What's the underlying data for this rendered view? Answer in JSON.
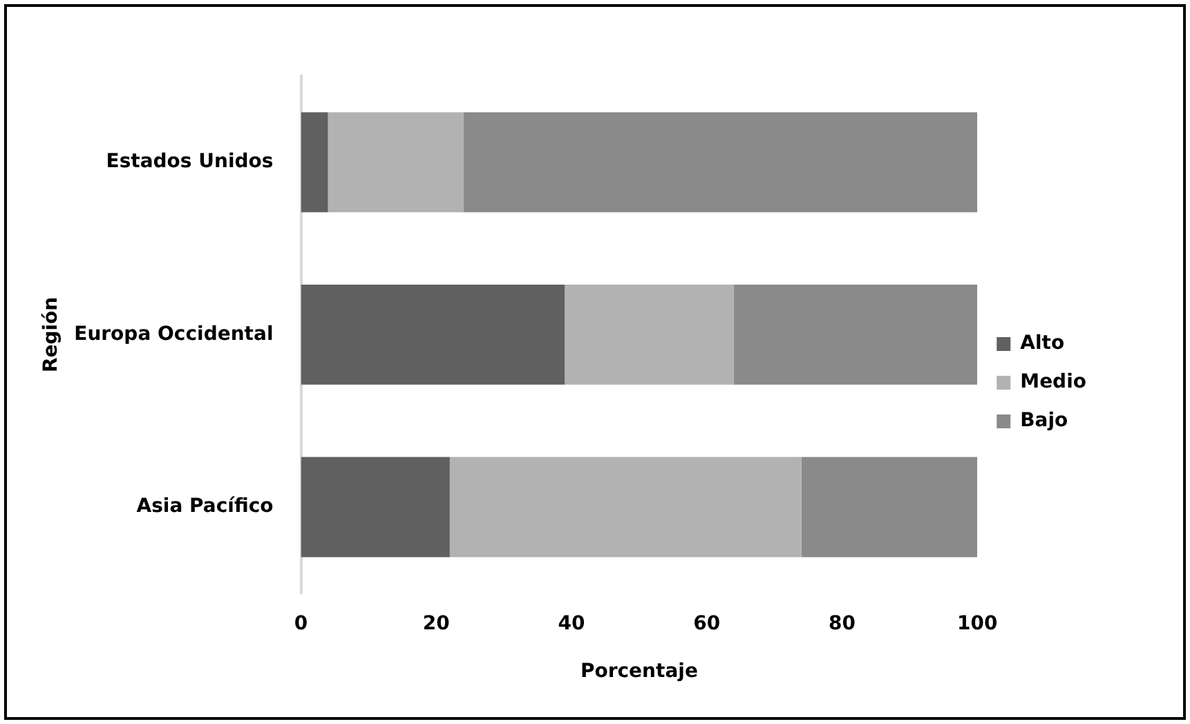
{
  "chart_data": {
    "type": "bar",
    "orientation": "horizontal",
    "stacked": true,
    "xlabel": "Porcentaje",
    "ylabel": "Región",
    "categories": [
      "Estados Unidos",
      "Europa Occidental",
      "Asia Pacífico"
    ],
    "series": [
      {
        "name": "Alto",
        "color": "#606060",
        "values": [
          4,
          39,
          22
        ]
      },
      {
        "name": "Medio",
        "color": "#b2b2b2",
        "values": [
          20,
          25,
          52
        ]
      },
      {
        "name": "Bajo",
        "color": "#8a8a8a",
        "values": [
          76,
          36,
          26
        ]
      }
    ],
    "xlim": [
      0,
      100
    ],
    "xticks": [
      0,
      20,
      40,
      60,
      80,
      100
    ],
    "legend": "right",
    "grid": false
  }
}
